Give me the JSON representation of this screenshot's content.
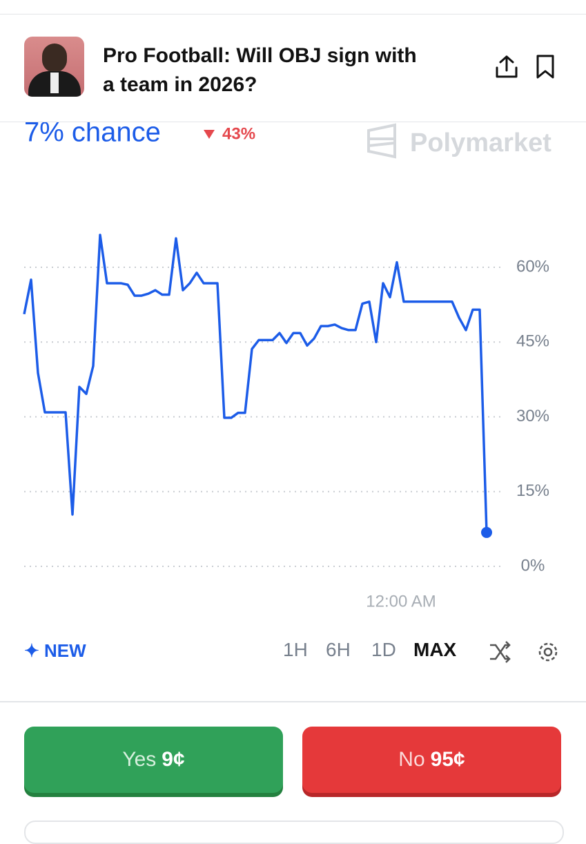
{
  "header": {
    "title": "Pro Football: Will OBJ sign with a team in 2026?"
  },
  "odds": {
    "chance": "7% chance",
    "change": "43%",
    "watermark": "Polymarket"
  },
  "chart_data": {
    "type": "line",
    "categories": [
      null,
      null,
      null,
      null,
      null,
      null,
      null,
      null,
      null,
      null,
      null,
      null,
      null,
      null,
      null,
      null,
      null,
      null,
      null,
      null,
      null,
      null,
      null,
      null,
      null,
      null,
      null,
      null,
      null,
      null,
      null,
      null,
      null,
      null,
      null,
      null,
      null,
      null,
      null,
      null,
      null,
      null,
      null,
      null,
      null,
      null,
      null,
      null,
      null,
      null,
      null,
      null,
      null,
      null,
      "12:00 AM",
      null,
      null,
      null,
      null,
      null,
      null,
      null,
      null,
      null,
      null,
      null,
      null,
      null
    ],
    "series": [
      {
        "name": "Yes",
        "color": "#1c5ce8",
        "values": [
          50.6,
          57.5,
          38.8,
          30.9,
          30.9,
          30.9,
          30.9,
          10.4,
          36,
          34.6,
          40.2,
          66.5,
          56.8,
          56.8,
          56.8,
          56.5,
          54.3,
          54.3,
          54.7,
          55.4,
          54.5,
          54.5,
          65.8,
          55.4,
          56.8,
          58.9,
          56.8,
          56.8,
          56.8,
          29.8,
          29.8,
          30.8,
          30.8,
          43.6,
          45.4,
          45.4,
          45.4,
          46.8,
          44.8,
          46.8,
          46.8,
          44.3,
          45.7,
          48.2,
          48.2,
          48.5,
          47.8,
          47.4,
          47.4,
          52.7,
          53.1,
          45,
          56.8,
          54,
          61,
          53.1,
          53.1,
          53.1,
          53.1,
          53.1,
          53.1,
          53.1,
          53.1,
          49.9,
          47.4,
          51.5,
          51.5,
          6.8
        ]
      }
    ],
    "ylim": [
      0,
      80
    ],
    "yticks": [
      {
        "value": 0,
        "label": "0%"
      },
      {
        "value": 15,
        "label": "15%"
      },
      {
        "value": 30,
        "label": "30%"
      },
      {
        "value": 45,
        "label": "45%"
      },
      {
        "value": 60,
        "label": "60%"
      }
    ],
    "grid": true
  },
  "controls": {
    "new": "NEW",
    "ranges": [
      "1H",
      "6H",
      "1D",
      "MAX"
    ],
    "active": "MAX"
  },
  "buttons": {
    "yes": {
      "label": "Yes",
      "price": "9¢"
    },
    "no": {
      "label": "No",
      "price": "95¢"
    }
  }
}
